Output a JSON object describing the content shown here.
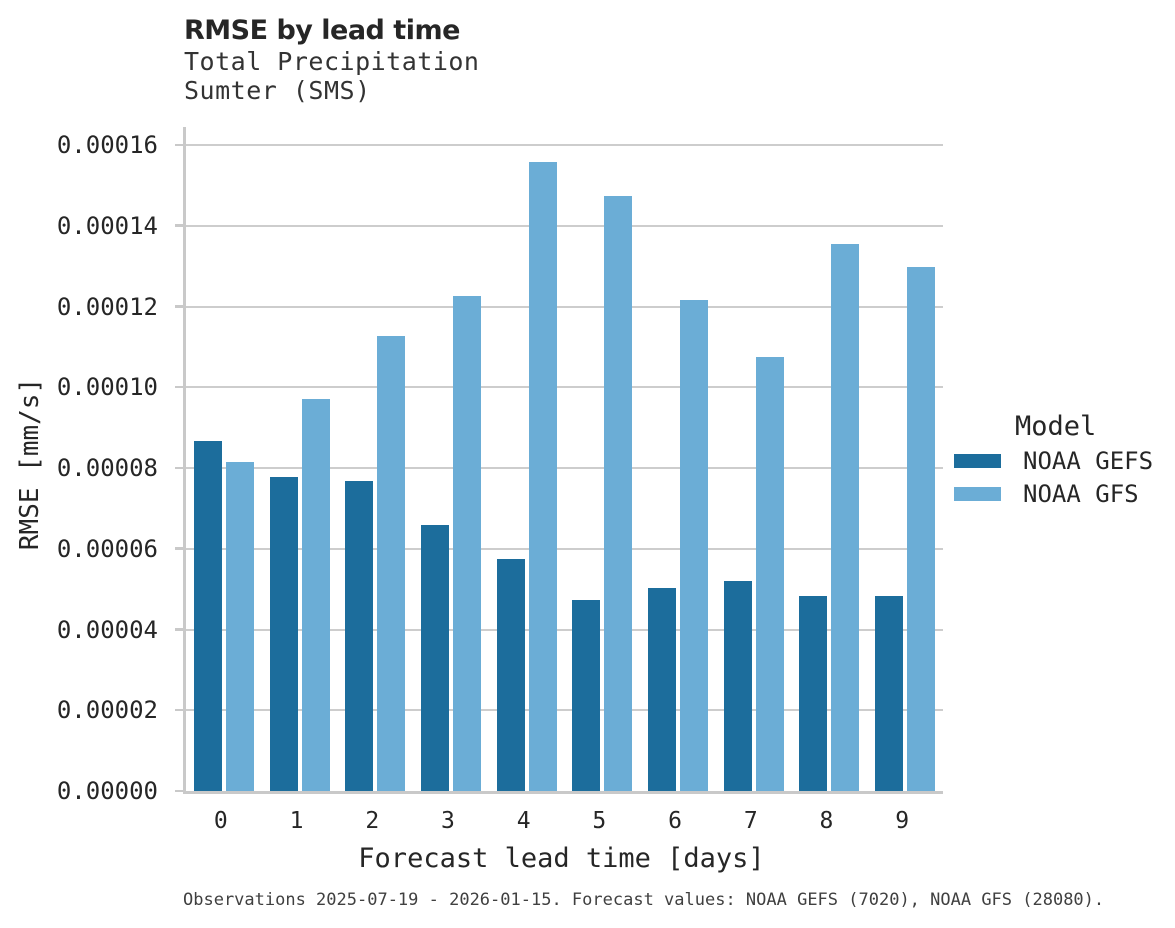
{
  "header": {
    "title": "RMSE by lead time",
    "subtitle_line1": "Total Precipitation",
    "subtitle_line2": "Sumter (SMS)"
  },
  "legend": {
    "title": "Model",
    "items": [
      {
        "label": "NOAA GEFS",
        "color": "#1c6d9c"
      },
      {
        "label": "NOAA GFS",
        "color": "#6badd6"
      }
    ]
  },
  "caption": "Observations 2025-07-19 - 2026-01-15. Forecast values: NOAA GEFS (7020), NOAA GFS (28080).",
  "colors": {
    "gefs": "#1c6d9c",
    "gfs": "#6badd6",
    "grid": "#cdcdcd",
    "axis": "#c9c9c9"
  },
  "chart_data": {
    "type": "bar",
    "title": "RMSE by lead time",
    "subtitle": "Total Precipitation Sumter (SMS)",
    "xlabel": "Forecast lead time [days]",
    "ylabel": "RMSE [mm/s]",
    "categories": [
      "0",
      "1",
      "2",
      "3",
      "4",
      "5",
      "6",
      "7",
      "8",
      "9"
    ],
    "series": [
      {
        "name": "NOAA GEFS",
        "color": "#1c6d9c",
        "values": [
          8.68e-05,
          7.78e-05,
          7.68e-05,
          6.6e-05,
          5.74e-05,
          4.73e-05,
          5.02e-05,
          5.21e-05,
          4.82e-05,
          4.82e-05
        ]
      },
      {
        "name": "NOAA GFS",
        "color": "#6badd6",
        "values": [
          8.14e-05,
          9.71e-05,
          0.0001127,
          0.0001227,
          0.0001558,
          0.0001473,
          0.0001216,
          0.0001075,
          0.0001355,
          0.0001297
        ]
      }
    ],
    "ylim": [
      0,
      0.00016
    ],
    "yticks": [
      0,
      2e-05,
      4e-05,
      6e-05,
      8e-05,
      0.0001,
      0.00012,
      0.00014,
      0.00016
    ],
    "ytick_labels": [
      "0.00000",
      "0.00002",
      "0.00004",
      "0.00006",
      "0.00008",
      "0.00010",
      "0.00012",
      "0.00014",
      "0.00016"
    ],
    "grid": true,
    "legend_position": "right",
    "legend_title": "Model"
  }
}
